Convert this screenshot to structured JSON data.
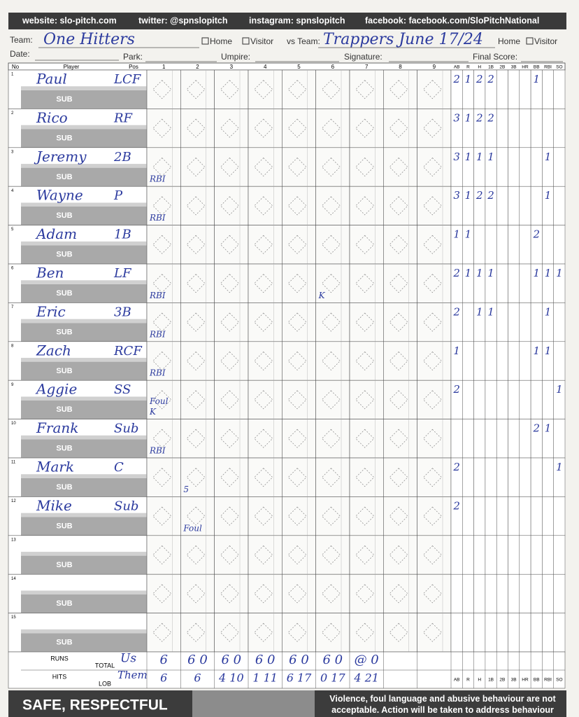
{
  "header": {
    "website": "website: slo-pitch.com",
    "twitter": "twitter: @spnslopitch",
    "instagram": "instagram: spnslopitch",
    "facebook": "facebook: facebook.com/SloPitchNational"
  },
  "form": {
    "team_label": "Team:",
    "team": "One Hitters",
    "home": "Home",
    "visitor": "Visitor",
    "vs_label": "vs Team:",
    "vs_team": "Trappers June 17/24",
    "home2": "Home",
    "visitor2": "Visitor",
    "date_label": "Date:",
    "park_label": "Park:",
    "umpire_label": "Umpire:",
    "signature_label": "Signature:",
    "final_label": "Final Score:"
  },
  "columns": {
    "no": "No",
    "player": "Player",
    "pos": "Pos",
    "innings": [
      1,
      2,
      3,
      4,
      5,
      6,
      7,
      8,
      9
    ],
    "stats": [
      "AB",
      "R",
      "H",
      "1B",
      "2B",
      "3B",
      "HR",
      "BB",
      "RBI",
      "SO"
    ]
  },
  "sub_label": "SUB",
  "players": [
    {
      "no": 1,
      "name": "Paul",
      "pos": "LCF",
      "stats": [
        2,
        1,
        2,
        2,
        null,
        null,
        null,
        1,
        null,
        null
      ]
    },
    {
      "no": 2,
      "name": "Rico",
      "pos": "RF",
      "stats": [
        3,
        1,
        2,
        2,
        null,
        null,
        null,
        null,
        null,
        null
      ]
    },
    {
      "no": 3,
      "name": "Jeremy",
      "pos": "2B",
      "stats": [
        3,
        1,
        1,
        1,
        null,
        null,
        null,
        null,
        1,
        null
      ]
    },
    {
      "no": 4,
      "name": "Wayne",
      "pos": "P",
      "stats": [
        3,
        1,
        2,
        2,
        null,
        null,
        null,
        null,
        1,
        null
      ]
    },
    {
      "no": 5,
      "name": "Adam",
      "pos": "1B",
      "stats": [
        1,
        1,
        null,
        null,
        null,
        null,
        null,
        2,
        null,
        null
      ]
    },
    {
      "no": 6,
      "name": "Ben",
      "pos": "LF",
      "stats": [
        2,
        1,
        1,
        1,
        null,
        null,
        null,
        1,
        1,
        1
      ]
    },
    {
      "no": 7,
      "name": "Eric",
      "pos": "3B",
      "stats": [
        2,
        null,
        1,
        1,
        null,
        null,
        null,
        null,
        1,
        null
      ]
    },
    {
      "no": 8,
      "name": "Zach",
      "pos": "RCF",
      "stats": [
        1,
        null,
        null,
        null,
        null,
        null,
        null,
        1,
        1,
        null
      ]
    },
    {
      "no": 9,
      "name": "Aggie",
      "pos": "SS",
      "stats": [
        2,
        null,
        null,
        null,
        null,
        null,
        null,
        null,
        null,
        1
      ]
    },
    {
      "no": 10,
      "name": "Frank",
      "pos": "Sub",
      "stats": [
        null,
        null,
        null,
        null,
        null,
        null,
        null,
        2,
        1,
        null
      ]
    },
    {
      "no": 11,
      "name": "Mark",
      "pos": "C",
      "stats": [
        2,
        null,
        null,
        null,
        null,
        null,
        null,
        null,
        null,
        1
      ]
    },
    {
      "no": 12,
      "name": "Mike",
      "pos": "Sub",
      "stats": [
        2,
        null,
        null,
        null,
        null,
        null,
        null,
        null,
        null,
        null
      ]
    },
    {
      "no": 13,
      "name": null,
      "pos": null,
      "stats": [
        null,
        null,
        null,
        null,
        null,
        null,
        null,
        null,
        null,
        null
      ]
    },
    {
      "no": 14,
      "name": null,
      "pos": null,
      "stats": [
        null,
        null,
        null,
        null,
        null,
        null,
        null,
        null,
        null,
        null
      ]
    },
    {
      "no": 15,
      "name": null,
      "pos": null,
      "stats": [
        null,
        null,
        null,
        null,
        null,
        null,
        null,
        null,
        null,
        null
      ]
    }
  ],
  "notes": [
    {
      "row": 2,
      "inning": 1,
      "text": "RBI"
    },
    {
      "row": 3,
      "inning": 1,
      "text": "RBI"
    },
    {
      "row": 5,
      "inning": 1,
      "text": "RBI"
    },
    {
      "row": 6,
      "inning": 1,
      "text": "RBI"
    },
    {
      "row": 7,
      "inning": 1,
      "text": "RBI"
    },
    {
      "row": 8,
      "inning": 1,
      "text": "K"
    },
    {
      "row": 8,
      "inning": 1,
      "text": "Foul"
    },
    {
      "row": 9,
      "inning": 1,
      "text": "RBI"
    },
    {
      "row": 10,
      "inning": 2,
      "text": "5"
    },
    {
      "row": 11,
      "inning": 2,
      "text": "Foul"
    },
    {
      "row": 5,
      "inning": 6,
      "text": "K"
    }
  ],
  "totals": {
    "runs": "RUNS",
    "hits": "HITS",
    "total": "TOTAL",
    "lob": "LOB",
    "us": "Us",
    "them": "Them",
    "us_values": [
      "6",
      "6 0",
      "6 0",
      "6 0",
      "6 0",
      "6 0",
      "@ 0"
    ],
    "them_values": [
      "6",
      "6",
      "4 10",
      "1 11",
      "6 17",
      "0 17",
      "4 21"
    ]
  },
  "footer": {
    "headline": "SAFE, RESPECTFUL",
    "message": "Violence, foul language and abusive behaviour are not acceptable. Action will be taken to address behaviour"
  }
}
